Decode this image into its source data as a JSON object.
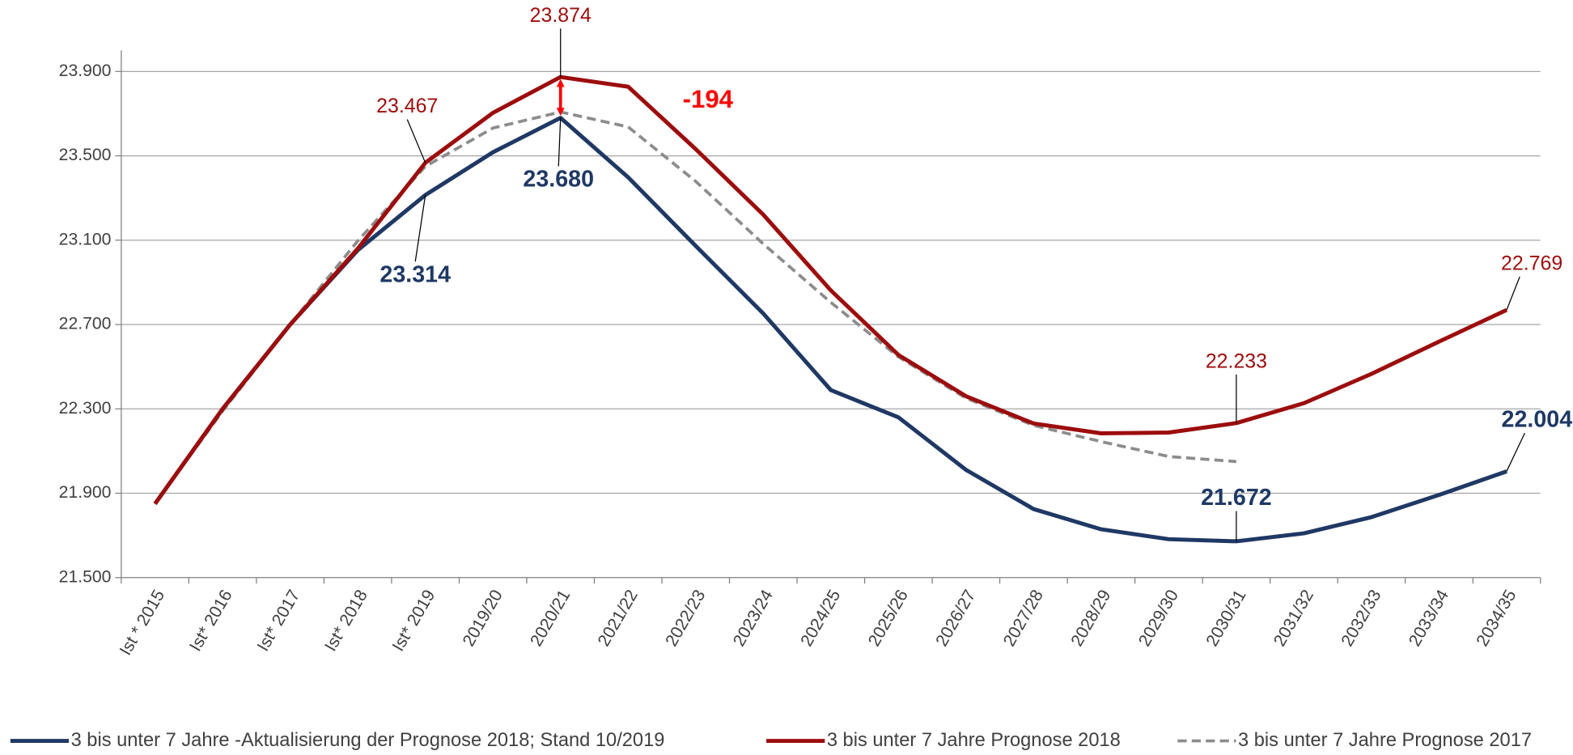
{
  "chart_data": {
    "type": "line",
    "categories": [
      "Ist * 2015",
      "Ist* 2016",
      "Ist* 2017",
      "Ist* 2018",
      "Ist* 2019",
      "2019/20",
      "2020/21",
      "2021/22",
      "2022/23",
      "2023/24",
      "2024/25",
      "2025/26",
      "2026/27",
      "2027/28",
      "2028/29",
      "2029/30",
      "2030/31",
      "2031/32",
      "2032/33",
      "2033/34",
      "2034/35"
    ],
    "series": [
      {
        "name": "3 bis unter 7 Jahre -Aktualisierung der Prognose 2018; Stand 10/2019",
        "color": "#1f3864",
        "dash": false,
        "values": [
          21850,
          22300,
          22700,
          23053,
          23314,
          23517,
          23680,
          23398,
          23073,
          22752,
          22389,
          22260,
          22011,
          21825,
          21729,
          21682,
          21672,
          21710,
          21787,
          21892,
          22004
        ],
        "value_labels": [
          null,
          null,
          null,
          null,
          "23.314",
          null,
          "23.680",
          null,
          null,
          null,
          null,
          null,
          null,
          null,
          null,
          null,
          "21.672",
          null,
          null,
          null,
          "22.004"
        ]
      },
      {
        "name": "3 bis unter 7 Jahre Prognose 2018",
        "color": "#9c0d0d",
        "dash": false,
        "values": [
          21850,
          22300,
          22700,
          23060,
          23467,
          23704,
          23874,
          23828,
          23532,
          23221,
          22862,
          22556,
          22360,
          22231,
          22184,
          22188,
          22233,
          22327,
          22466,
          22619,
          22769
        ],
        "value_labels": [
          null,
          null,
          null,
          null,
          "23.467",
          null,
          "23.874",
          null,
          null,
          null,
          null,
          null,
          null,
          null,
          null,
          null,
          "22.233",
          null,
          null,
          null,
          "22.769"
        ]
      },
      {
        "name": "3 bis unter 7 Jahre Prognose 2017",
        "color": "#8c8c8c",
        "dash": true,
        "values": [
          21850,
          22290,
          22700,
          23097,
          23450,
          23632,
          23708,
          23637,
          23379,
          23082,
          22805,
          22547,
          22351,
          22222,
          22145,
          22074,
          22050,
          null,
          null,
          null,
          null
        ]
      }
    ],
    "annotations": [
      {
        "text": "-194",
        "color": "#ff0000"
      }
    ],
    "ylim": [
      21500,
      24000
    ],
    "yticks": [
      {
        "value": 21500,
        "label": "21.500"
      },
      {
        "value": 21900,
        "label": "21.900"
      },
      {
        "value": 22300,
        "label": "22.300"
      },
      {
        "value": 22700,
        "label": "22.700"
      },
      {
        "value": 23100,
        "label": "23.100"
      },
      {
        "value": 23500,
        "label": "23.500"
      },
      {
        "value": 23900,
        "label": "23.900"
      }
    ],
    "grid": true,
    "legend": "bottom"
  }
}
